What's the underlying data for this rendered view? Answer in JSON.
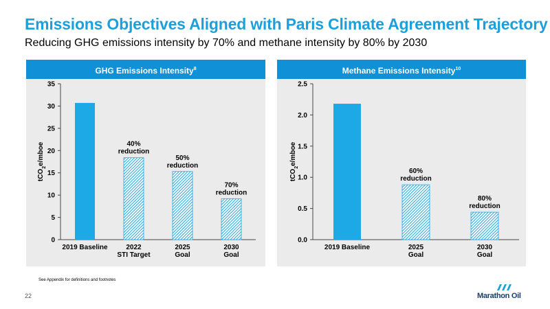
{
  "page": {
    "title": "Emissions Objectives Aligned with Paris Climate Agreement Trajectory",
    "subtitle": "Reducing GHG emissions intensity by 70% and methane intensity by 80% by 2030",
    "footnote": "See Appendix for definitions and footnotes",
    "page_number": "22",
    "logo_text": "Marathon Oil"
  },
  "colors": {
    "accent": "#1ca0db",
    "header": "#1090d6",
    "bar": "#1ca9e6",
    "panel": "#ebebeb"
  },
  "chart_data": [
    {
      "type": "bar",
      "title": "GHG Emissions Intensity",
      "title_sup": "8",
      "ylabel": "tCO2e/mboe",
      "ylim": [
        0,
        35
      ],
      "yticks": [
        "0",
        "5",
        "10",
        "15",
        "20",
        "25",
        "30",
        "35"
      ],
      "categories": [
        [
          "2019 Baseline"
        ],
        [
          "2022",
          "STI Target"
        ],
        [
          "2025",
          "Goal"
        ],
        [
          "2030",
          "Goal"
        ]
      ],
      "values": [
        30.7,
        18.4,
        15.3,
        9.2
      ],
      "styles": [
        "solid",
        "hatched",
        "hatched",
        "hatched"
      ],
      "annotations": [
        [],
        [
          "40%",
          "reduction"
        ],
        [
          "50%",
          "reduction"
        ],
        [
          "70%",
          "reduction"
        ]
      ],
      "grid": false
    },
    {
      "type": "bar",
      "title": "Methane Emissions Intensity",
      "title_sup": "10",
      "ylabel": "tCO2e/mboe",
      "ylim": [
        0,
        2.5
      ],
      "yticks": [
        "0.0",
        "0.5",
        "1.0",
        "1.5",
        "2.0",
        "2.5"
      ],
      "categories": [
        [
          "2019 Baseline"
        ],
        [
          "2025",
          "Goal"
        ],
        [
          "2030",
          "Goal"
        ]
      ],
      "values": [
        2.18,
        0.88,
        0.44
      ],
      "styles": [
        "solid",
        "hatched",
        "hatched"
      ],
      "annotations": [
        [],
        [
          "60%",
          "reduction"
        ],
        [
          "80%",
          "reduction"
        ]
      ],
      "grid": false
    }
  ]
}
